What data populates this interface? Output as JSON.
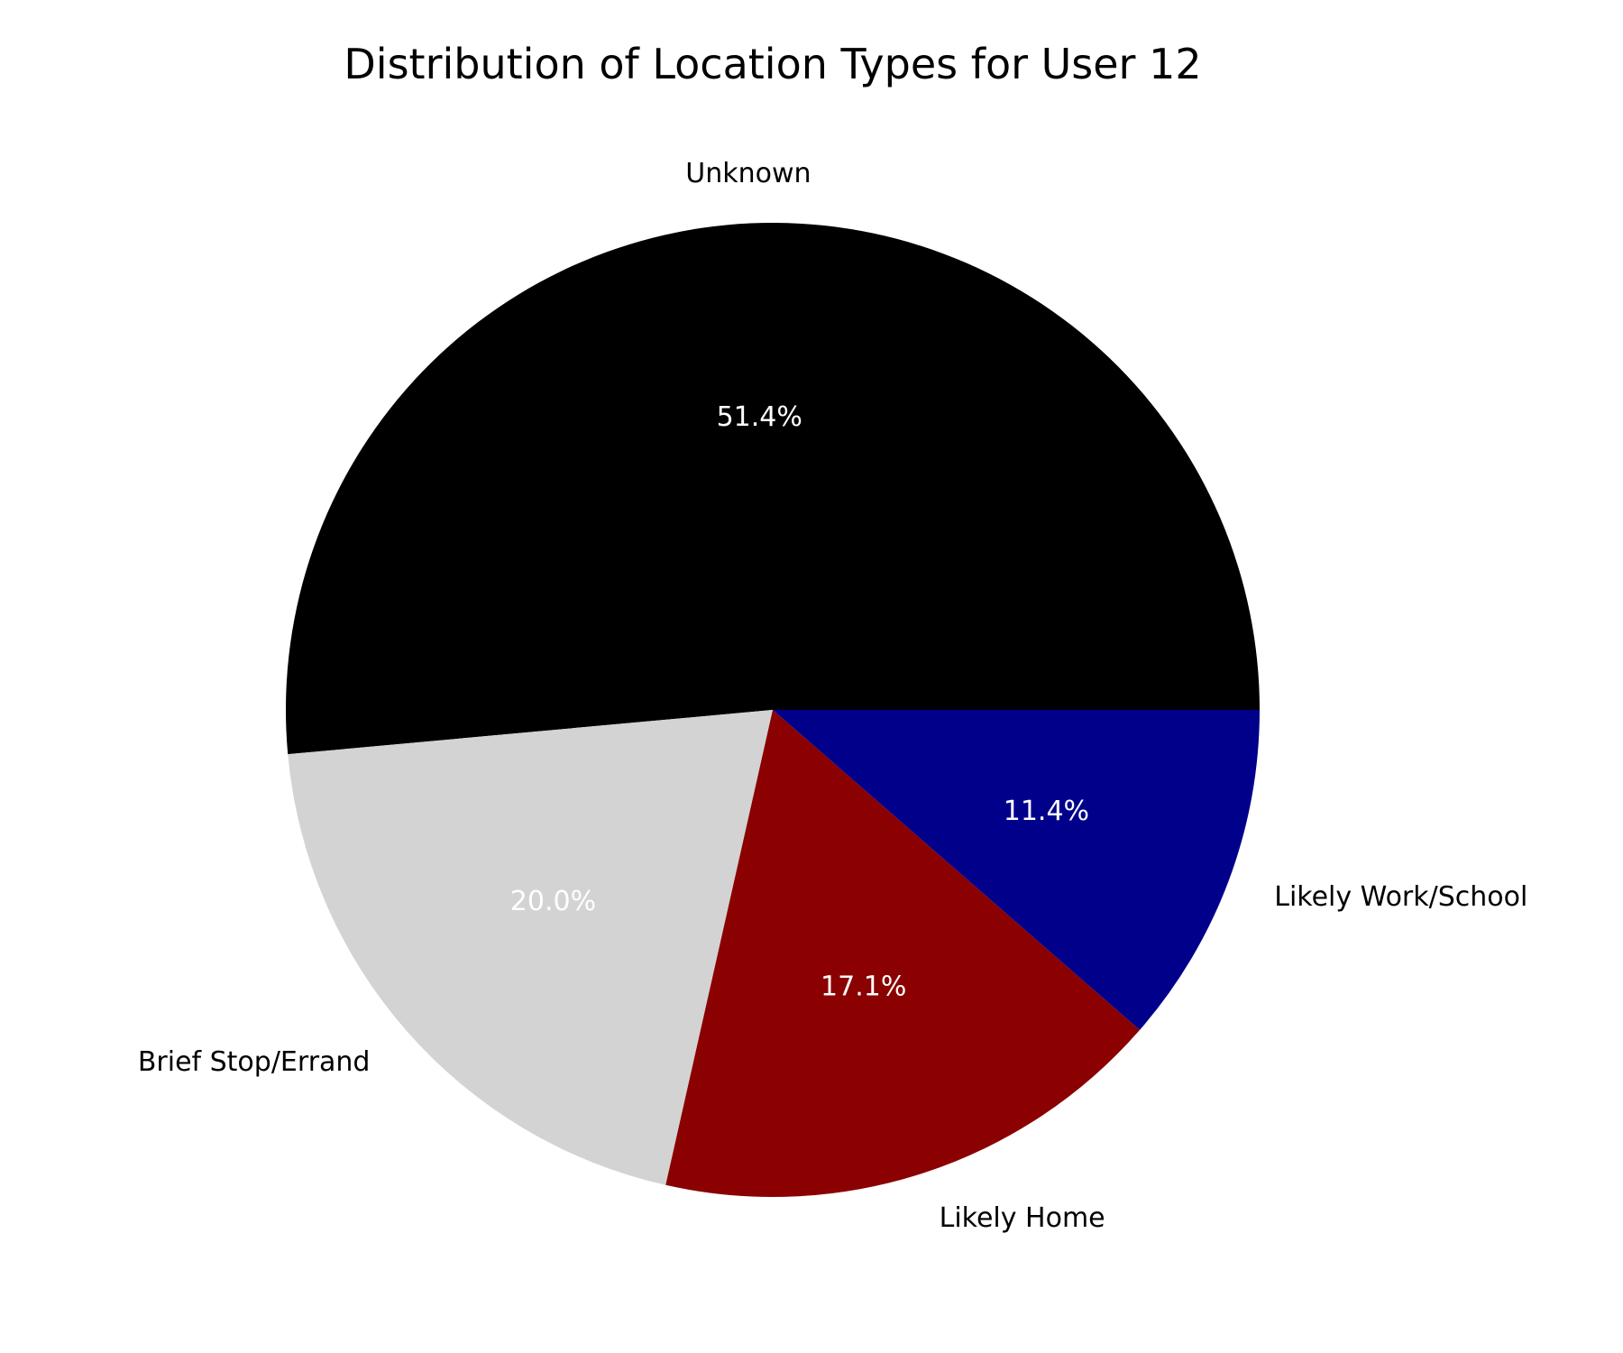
{
  "chart_data": {
    "type": "pie",
    "title": "Distribution of Location Types for User 12",
    "start_angle_deg": 0,
    "direction": "counterclockwise",
    "slices": [
      {
        "label": "Unknown",
        "value": 51.4,
        "pct_label": "51.4%",
        "color": "#000000"
      },
      {
        "label": "Brief Stop/Errand",
        "value": 20.0,
        "pct_label": "20.0%",
        "color": "#d3d3d3"
      },
      {
        "label": "Likely Home",
        "value": 17.1,
        "pct_label": "17.1%",
        "color": "#8b0000"
      },
      {
        "label": "Likely Work/School",
        "value": 11.4,
        "pct_label": "11.4%",
        "color": "#00008b"
      }
    ]
  }
}
